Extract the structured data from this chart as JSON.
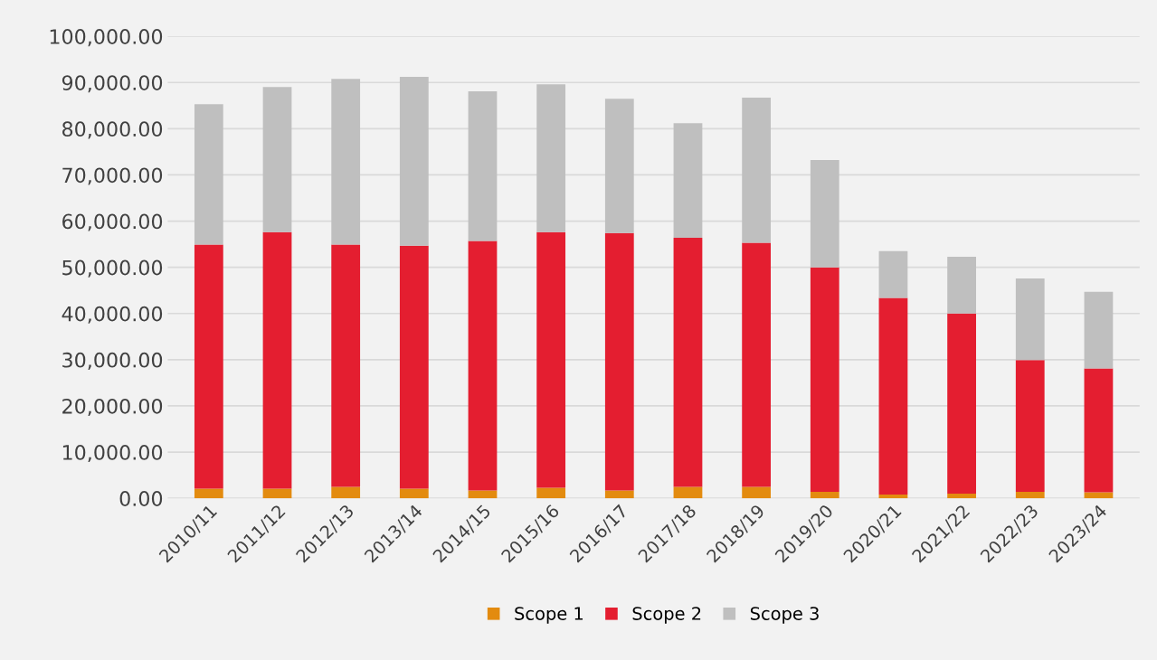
{
  "chart_data": {
    "type": "bar",
    "stacked": true,
    "categories": [
      "2010/11",
      "2011/12",
      "2012/13",
      "2013/14",
      "2014/15",
      "2015/16",
      "2016/17",
      "2017/18",
      "2018/19",
      "2019/20",
      "2020/21",
      "2021/22",
      "2022/23",
      "2023/24"
    ],
    "series": [
      {
        "name": "Scope 1",
        "color": "#e38b0f",
        "values": [
          2100,
          2100,
          2500,
          2100,
          1700,
          2300,
          1700,
          2500,
          2500,
          1400,
          800,
          1000,
          1400,
          1300
        ]
      },
      {
        "name": "Scope 2",
        "color": "#e41e30",
        "values": [
          52800,
          55500,
          52400,
          52600,
          54000,
          55300,
          55700,
          53900,
          52800,
          48600,
          42600,
          39000,
          28500,
          26800
        ]
      },
      {
        "name": "Scope 3",
        "color": "#bfbfbf",
        "values": [
          30400,
          31400,
          35900,
          36500,
          32400,
          32000,
          29100,
          24800,
          31400,
          23200,
          10100,
          12300,
          17700,
          16600
        ]
      }
    ],
    "ylim": [
      0,
      100000
    ],
    "yticks": [
      {
        "value": 0,
        "label": "0.00"
      },
      {
        "value": 10000,
        "label": "10,000.00"
      },
      {
        "value": 20000,
        "label": "20,000.00"
      },
      {
        "value": 30000,
        "label": "30,000.00"
      },
      {
        "value": 40000,
        "label": "40,000.00"
      },
      {
        "value": 50000,
        "label": "50,000.00"
      },
      {
        "value": 60000,
        "label": "60,000.00"
      },
      {
        "value": 70000,
        "label": "70,000.00"
      },
      {
        "value": 80000,
        "label": "80,000.00"
      },
      {
        "value": 90000,
        "label": "90,000.00"
      },
      {
        "value": 100000,
        "label": "100,000.00"
      }
    ],
    "grid": "y",
    "legend": "bottom"
  }
}
